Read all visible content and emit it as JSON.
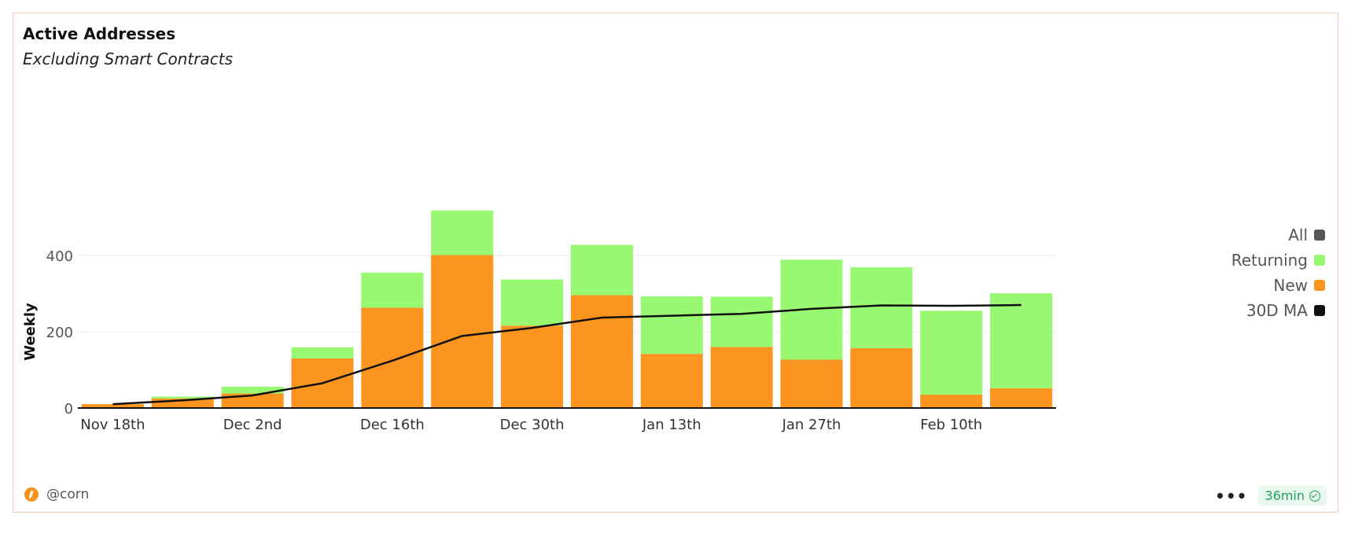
{
  "card": {
    "title": "Active Addresses",
    "subtitle": "Excluding Smart Contracts",
    "author": "@corn",
    "refresh_badge": "36min",
    "more_icon": "ellipsis-icon",
    "verified_icon": "check-circle-icon"
  },
  "colors": {
    "all": "#555555",
    "returning": "#98f871",
    "new": "#fc9420",
    "ma": "#111111",
    "grid": "#e8e8e8"
  },
  "chart_data": {
    "type": "bar",
    "stacked": true,
    "ylabel": "Weekly",
    "ylim": [
      0,
      520
    ],
    "yticks": [
      0,
      200,
      400
    ],
    "xtick_labels": [
      "Nov 18th",
      "Dec 2nd",
      "Dec 16th",
      "Dec 30th",
      "Jan 13th",
      "Jan 27th",
      "Feb 10th"
    ],
    "categories": [
      "2024-11-18",
      "2024-11-25",
      "2024-12-02",
      "2024-12-09",
      "2024-12-16",
      "2024-12-23",
      "2024-12-30",
      "2025-01-06",
      "2025-01-13",
      "2025-01-20",
      "2025-01-27",
      "2025-02-03",
      "2025-02-10",
      "2025-02-17"
    ],
    "series": [
      {
        "name": "New",
        "type": "bar",
        "values": [
          10,
          25,
          38,
          130,
          263,
          401,
          216,
          296,
          142,
          160,
          127,
          157,
          35,
          52
        ]
      },
      {
        "name": "Returning",
        "type": "bar",
        "values": [
          0,
          5,
          18,
          29,
          92,
          117,
          121,
          132,
          151,
          132,
          262,
          212,
          220,
          249
        ]
      },
      {
        "name": "30D MA",
        "type": "line",
        "values": [
          10,
          20,
          33,
          65,
          124,
          189,
          210,
          237,
          242,
          247,
          260,
          269,
          268,
          270
        ]
      }
    ],
    "legend": [
      "All",
      "Returning",
      "New",
      "30D MA"
    ],
    "legend_position": "right",
    "grid": true
  }
}
